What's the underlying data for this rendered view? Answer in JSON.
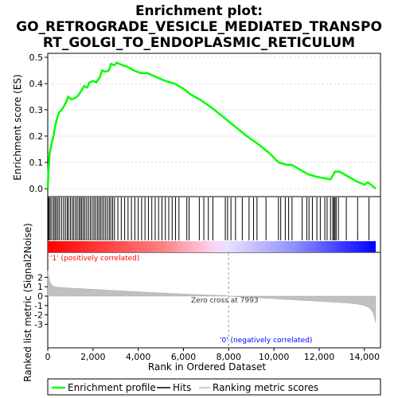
{
  "chart_data": {
    "type": "line",
    "title_line1": "Enrichment plot:",
    "title_line2": "GO_RETROGRADE_VESICLE_MEDIATED_TRANSPO",
    "title_line3": "RT_GOLGI_TO_ENDOPLASMIC_RETICULUM",
    "es_ylabel": "Enrichment score (ES)",
    "metric_ylabel": "Ranked list metric (Signal2Noise)",
    "xlabel": "Rank in Ordered Dataset",
    "x_range": [
      0,
      14500
    ],
    "x_ticks": [
      "0",
      "2,000",
      "4,000",
      "6,000",
      "8,000",
      "10,000",
      "12,000",
      "14,000"
    ],
    "x_tick_values": [
      0,
      2000,
      4000,
      6000,
      8000,
      10000,
      12000,
      14000
    ],
    "es_range": [
      0.0,
      0.5
    ],
    "es_ticks": [
      "0.0",
      "0.1",
      "0.2",
      "0.3",
      "0.4",
      "0.5"
    ],
    "es_tick_values": [
      0.0,
      0.1,
      0.2,
      0.3,
      0.4,
      0.5
    ],
    "metric_range": [
      -3,
      3
    ],
    "metric_ticks": [
      "-3",
      "-2",
      "-1",
      "0",
      "1",
      "2"
    ],
    "metric_tick_values": [
      -3,
      -2,
      -1,
      0,
      1,
      2
    ],
    "enrichment_profile": [
      [
        0,
        0.0
      ],
      [
        30,
        0.07
      ],
      [
        80,
        0.13
      ],
      [
        150,
        0.165
      ],
      [
        250,
        0.2
      ],
      [
        330,
        0.24
      ],
      [
        420,
        0.27
      ],
      [
        500,
        0.29
      ],
      [
        620,
        0.3
      ],
      [
        720,
        0.315
      ],
      [
        820,
        0.33
      ],
      [
        900,
        0.35
      ],
      [
        1050,
        0.34
      ],
      [
        1200,
        0.345
      ],
      [
        1350,
        0.355
      ],
      [
        1500,
        0.375
      ],
      [
        1600,
        0.39
      ],
      [
        1750,
        0.385
      ],
      [
        1850,
        0.405
      ],
      [
        2000,
        0.41
      ],
      [
        2150,
        0.405
      ],
      [
        2300,
        0.425
      ],
      [
        2400,
        0.45
      ],
      [
        2550,
        0.445
      ],
      [
        2700,
        0.45
      ],
      [
        2800,
        0.475
      ],
      [
        2950,
        0.47
      ],
      [
        3050,
        0.48
      ],
      [
        3300,
        0.47
      ],
      [
        3500,
        0.465
      ],
      [
        3800,
        0.45
      ],
      [
        4100,
        0.44
      ],
      [
        4400,
        0.44
      ],
      [
        4800,
        0.425
      ],
      [
        5200,
        0.41
      ],
      [
        5600,
        0.4
      ],
      [
        6000,
        0.38
      ],
      [
        6300,
        0.36
      ],
      [
        6800,
        0.335
      ],
      [
        7300,
        0.305
      ],
      [
        7800,
        0.27
      ],
      [
        8300,
        0.235
      ],
      [
        8800,
        0.2
      ],
      [
        9300,
        0.17
      ],
      [
        9800,
        0.135
      ],
      [
        10200,
        0.1
      ],
      [
        10600,
        0.09
      ],
      [
        10800,
        0.09
      ],
      [
        11200,
        0.07
      ],
      [
        11500,
        0.055
      ],
      [
        11900,
        0.045
      ],
      [
        12200,
        0.04
      ],
      [
        12500,
        0.035
      ],
      [
        12700,
        0.065
      ],
      [
        12900,
        0.065
      ],
      [
        13200,
        0.05
      ],
      [
        13600,
        0.03
      ],
      [
        14000,
        0.015
      ],
      [
        14150,
        0.025
      ],
      [
        14500,
        0.0
      ]
    ],
    "hit_ranks": [
      20,
      60,
      110,
      180,
      260,
      320,
      380,
      450,
      520,
      610,
      700,
      780,
      860,
      920,
      1000,
      1080,
      1150,
      1230,
      1300,
      1380,
      1440,
      1500,
      1570,
      1640,
      1720,
      1800,
      1880,
      1960,
      2040,
      2110,
      2190,
      2260,
      2330,
      2400,
      2480,
      2560,
      2640,
      2720,
      2790,
      2870,
      2950,
      3100,
      3250,
      3400,
      3550,
      3700,
      3850,
      4000,
      4150,
      4300,
      4450,
      4600,
      4750,
      4900,
      5050,
      5200,
      5350,
      5500,
      5650,
      5800,
      6150,
      6250,
      6700,
      6900,
      7100,
      7300,
      7850,
      7950,
      8100,
      8300,
      8600,
      8900,
      9100,
      9250,
      9650,
      10200,
      10300,
      10500,
      10650,
      10800,
      11250,
      11450,
      11550,
      11700,
      11900,
      12050,
      12250,
      12350,
      12500,
      12600,
      12650,
      12700,
      12750,
      12850,
      13200,
      13700,
      14200
    ],
    "zero_cross_label": "Zero cross at 7993",
    "zero_cross_rank": 7993,
    "pos_label": "'1' (positively correlated)",
    "neg_label": "'0' (negatively correlated)",
    "legend": [
      "Enrichment profile",
      "Hits",
      "Ranking metric scores"
    ],
    "colors": {
      "profile": "#00ff00",
      "hits": "#000000",
      "metric_fill": "#c0c0c0",
      "pos_text": "#ff0000",
      "neg_text": "#0000ff",
      "gridline": "#c8c8c8",
      "bar_red": "#ff0000",
      "bar_blue": "#0000ff"
    }
  }
}
